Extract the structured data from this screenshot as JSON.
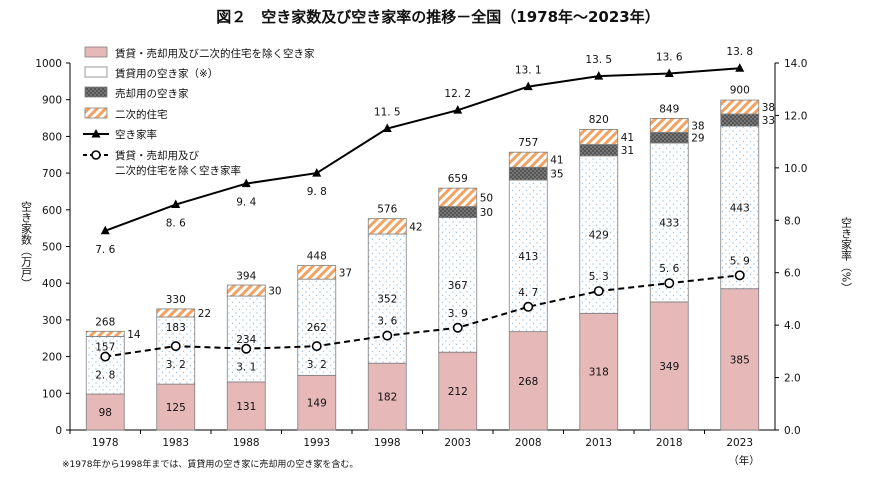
{
  "chart_data": {
    "type": "bar",
    "title": "図２　空き家数及び空き家率の推移－全国（1978年～2023年）",
    "categories": [
      "1978",
      "1983",
      "1988",
      "1993",
      "1998",
      "2003",
      "2008",
      "2013",
      "2018",
      "2023"
    ],
    "series": [
      {
        "name": "賃貸・売却用及び二次的住宅を除く空き家",
        "values": [
          98,
          125,
          131,
          149,
          182,
          212,
          268,
          318,
          349,
          385
        ],
        "color": "#e6b8b7"
      },
      {
        "name": "賃貸用の空き家（※）",
        "values": [
          157,
          183,
          234,
          262,
          352,
          367,
          413,
          429,
          433,
          443
        ],
        "color": "#ffffff"
      },
      {
        "name": "売却用の空き家",
        "values": [
          null,
          null,
          null,
          null,
          null,
          30,
          35,
          31,
          29,
          33
        ],
        "color": "#595959"
      },
      {
        "name": "二次的住宅",
        "values": [
          14,
          22,
          30,
          37,
          42,
          50,
          41,
          41,
          38,
          38
        ],
        "color": "#f4b183"
      }
    ],
    "totals": [
      268,
      330,
      394,
      448,
      576,
      659,
      757,
      820,
      849,
      900
    ],
    "line_series": [
      {
        "name": "空き家率",
        "values": [
          7.6,
          8.6,
          9.4,
          9.8,
          11.5,
          12.2,
          13.1,
          13.5,
          13.6,
          13.8
        ],
        "labels": [
          "7. 6",
          "8. 6",
          "9. 4",
          "9. 8",
          "11. 5",
          "12. 2",
          "13. 1",
          "13. 5",
          "13. 6",
          "13. 8"
        ],
        "style": "solid-triangle"
      },
      {
        "name": "賃貸・売却用及び二次的住宅を除く空き家率",
        "values": [
          2.8,
          3.2,
          3.1,
          3.2,
          3.6,
          3.9,
          4.7,
          5.3,
          5.6,
          5.9
        ],
        "labels": [
          "2. 8",
          "3. 2",
          "3. 1",
          "3. 2",
          "3. 6",
          "3. 9",
          "4. 7",
          "5. 3",
          "5. 6",
          "5. 9"
        ],
        "style": "dashed-circle"
      }
    ],
    "legend_labels": [
      "賃貸・売却用及び二次的住宅を除く空き家",
      "賃貸用の空き家（※）",
      "売却用の空き家",
      "二次的住宅",
      "空き家率",
      "賃貸・売却用及び",
      "二次的住宅を除く空き家率"
    ],
    "ylabel_left": "空き家数（万戸）",
    "ylabel_right": "空き家率（%）",
    "xunit": "（年）",
    "ylim_left": [
      0,
      1000
    ],
    "yticks_left": [
      0,
      100,
      200,
      300,
      400,
      500,
      600,
      700,
      800,
      900,
      1000
    ],
    "ylim_right": [
      0,
      14
    ],
    "yticks_right": [
      "0.0",
      "2.0",
      "4.0",
      "6.0",
      "8.0",
      "10.0",
      "12.0",
      "14.0"
    ],
    "legend_position": "top-left",
    "footnote": "※1978年から1998年までは、賃貸用の空き家に売却用の空き家を含む。"
  }
}
